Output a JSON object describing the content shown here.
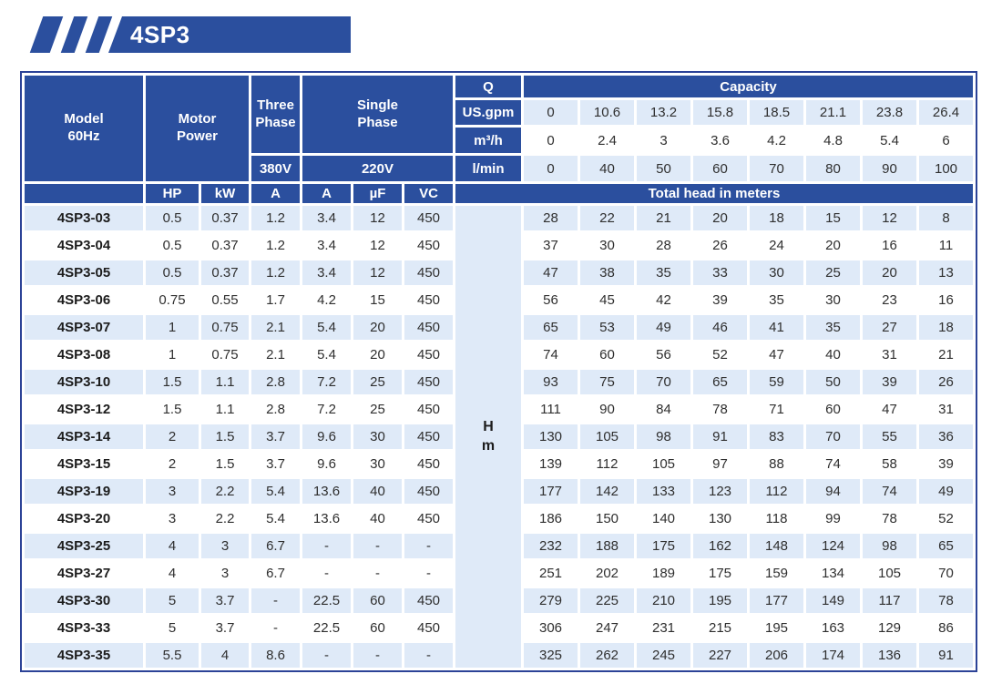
{
  "banner": {
    "title": "4SP3"
  },
  "colors": {
    "header_blue": "#2b4f9e",
    "light_blue": "#dfeaf8",
    "border_blue": "#2c4397",
    "text_dark": "#2f2f2f",
    "model_text": "#1c1c1c"
  },
  "table": {
    "header": {
      "model": [
        "Model",
        "60Hz"
      ],
      "motor_power": [
        "Motor",
        "Power"
      ],
      "three_phase": [
        "Three",
        "Phase"
      ],
      "single_phase": [
        "Single",
        "Phase"
      ],
      "v380": "380V",
      "v220": "220V",
      "q": "Q",
      "capacity": "Capacity",
      "us_gpm_label": "US.gpm",
      "m3h_label": "m³/h",
      "lmin_label": "l/min",
      "hp": "HP",
      "kw": "kW",
      "a380": "A",
      "a220": "A",
      "uf": "µF",
      "vc": "VC",
      "total_head": "Total head in meters",
      "head_unit": [
        "H",
        "m"
      ]
    },
    "capacity_rows": {
      "us_gpm": [
        "0",
        "10.6",
        "13.2",
        "15.8",
        "18.5",
        "21.1",
        "23.8",
        "26.4"
      ],
      "m3_h": [
        "0",
        "2.4",
        "3",
        "3.6",
        "4.2",
        "4.8",
        "5.4",
        "6"
      ],
      "l_min": [
        "0",
        "40",
        "50",
        "60",
        "70",
        "80",
        "90",
        "100"
      ]
    },
    "rows": [
      {
        "model": "4SP3-03",
        "hp": "0.5",
        "kw": "0.37",
        "a380": "1.2",
        "a220": "3.4",
        "uf": "12",
        "vc": "450",
        "heads": [
          "28",
          "22",
          "21",
          "20",
          "18",
          "15",
          "12",
          "8"
        ]
      },
      {
        "model": "4SP3-04",
        "hp": "0.5",
        "kw": "0.37",
        "a380": "1.2",
        "a220": "3.4",
        "uf": "12",
        "vc": "450",
        "heads": [
          "37",
          "30",
          "28",
          "26",
          "24",
          "20",
          "16",
          "11"
        ]
      },
      {
        "model": "4SP3-05",
        "hp": "0.5",
        "kw": "0.37",
        "a380": "1.2",
        "a220": "3.4",
        "uf": "12",
        "vc": "450",
        "heads": [
          "47",
          "38",
          "35",
          "33",
          "30",
          "25",
          "20",
          "13"
        ]
      },
      {
        "model": "4SP3-06",
        "hp": "0.75",
        "kw": "0.55",
        "a380": "1.7",
        "a220": "4.2",
        "uf": "15",
        "vc": "450",
        "heads": [
          "56",
          "45",
          "42",
          "39",
          "35",
          "30",
          "23",
          "16"
        ]
      },
      {
        "model": "4SP3-07",
        "hp": "1",
        "kw": "0.75",
        "a380": "2.1",
        "a220": "5.4",
        "uf": "20",
        "vc": "450",
        "heads": [
          "65",
          "53",
          "49",
          "46",
          "41",
          "35",
          "27",
          "18"
        ]
      },
      {
        "model": "4SP3-08",
        "hp": "1",
        "kw": "0.75",
        "a380": "2.1",
        "a220": "5.4",
        "uf": "20",
        "vc": "450",
        "heads": [
          "74",
          "60",
          "56",
          "52",
          "47",
          "40",
          "31",
          "21"
        ]
      },
      {
        "model": "4SP3-10",
        "hp": "1.5",
        "kw": "1.1",
        "a380": "2.8",
        "a220": "7.2",
        "uf": "25",
        "vc": "450",
        "heads": [
          "93",
          "75",
          "70",
          "65",
          "59",
          "50",
          "39",
          "26"
        ]
      },
      {
        "model": "4SP3-12",
        "hp": "1.5",
        "kw": "1.1",
        "a380": "2.8",
        "a220": "7.2",
        "uf": "25",
        "vc": "450",
        "heads": [
          "111",
          "90",
          "84",
          "78",
          "71",
          "60",
          "47",
          "31"
        ]
      },
      {
        "model": "4SP3-14",
        "hp": "2",
        "kw": "1.5",
        "a380": "3.7",
        "a220": "9.6",
        "uf": "30",
        "vc": "450",
        "heads": [
          "130",
          "105",
          "98",
          "91",
          "83",
          "70",
          "55",
          "36"
        ]
      },
      {
        "model": "4SP3-15",
        "hp": "2",
        "kw": "1.5",
        "a380": "3.7",
        "a220": "9.6",
        "uf": "30",
        "vc": "450",
        "heads": [
          "139",
          "112",
          "105",
          "97",
          "88",
          "74",
          "58",
          "39"
        ]
      },
      {
        "model": "4SP3-19",
        "hp": "3",
        "kw": "2.2",
        "a380": "5.4",
        "a220": "13.6",
        "uf": "40",
        "vc": "450",
        "heads": [
          "177",
          "142",
          "133",
          "123",
          "112",
          "94",
          "74",
          "49"
        ]
      },
      {
        "model": "4SP3-20",
        "hp": "3",
        "kw": "2.2",
        "a380": "5.4",
        "a220": "13.6",
        "uf": "40",
        "vc": "450",
        "heads": [
          "186",
          "150",
          "140",
          "130",
          "118",
          "99",
          "78",
          "52"
        ]
      },
      {
        "model": "4SP3-25",
        "hp": "4",
        "kw": "3",
        "a380": "6.7",
        "a220": "-",
        "uf": "-",
        "vc": "-",
        "heads": [
          "232",
          "188",
          "175",
          "162",
          "148",
          "124",
          "98",
          "65"
        ]
      },
      {
        "model": "4SP3-27",
        "hp": "4",
        "kw": "3",
        "a380": "6.7",
        "a220": "-",
        "uf": "-",
        "vc": "-",
        "heads": [
          "251",
          "202",
          "189",
          "175",
          "159",
          "134",
          "105",
          "70"
        ]
      },
      {
        "model": "4SP3-30",
        "hp": "5",
        "kw": "3.7",
        "a380": "-",
        "a220": "22.5",
        "uf": "60",
        "vc": "450",
        "heads": [
          "279",
          "225",
          "210",
          "195",
          "177",
          "149",
          "117",
          "78"
        ]
      },
      {
        "model": "4SP3-33",
        "hp": "5",
        "kw": "3.7",
        "a380": "-",
        "a220": "22.5",
        "uf": "60",
        "vc": "450",
        "heads": [
          "306",
          "247",
          "231",
          "215",
          "195",
          "163",
          "129",
          "86"
        ]
      },
      {
        "model": "4SP3-35",
        "hp": "5.5",
        "kw": "4",
        "a380": "8.6",
        "a220": "-",
        "uf": "-",
        "vc": "-",
        "heads": [
          "325",
          "262",
          "245",
          "227",
          "206",
          "174",
          "136",
          "91"
        ]
      }
    ]
  }
}
